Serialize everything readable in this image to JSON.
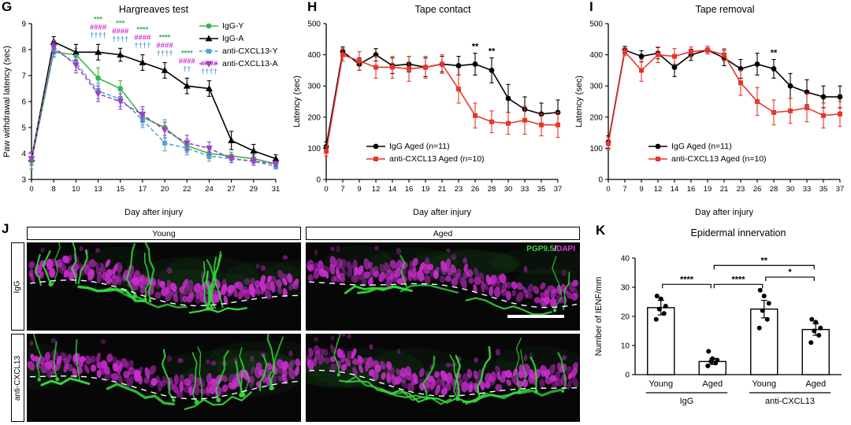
{
  "colors": {
    "green": "#3cb44a",
    "black": "#000000",
    "blue": "#53a2d8",
    "purple": "#a23fc6",
    "red": "#e8362b",
    "magenta_sig": "#cc2fd0",
    "micro_green": "#35d83a",
    "micro_magenta": "#d02cd4"
  },
  "panels": {
    "g": "G",
    "h": "H",
    "i": "I",
    "j": "J",
    "k": "K"
  },
  "chart_data": [
    {
      "id": "hargreaves",
      "type": "line",
      "title": "Hargreaves test",
      "xlabel": "Day after injury",
      "ylabel": "Paw withdrawal latency (sec)",
      "categories": [
        0,
        8,
        10,
        13,
        15,
        17,
        20,
        22,
        24,
        27,
        29,
        31
      ],
      "ylim": [
        3,
        9
      ],
      "yticks": [
        3,
        4,
        5,
        6,
        7,
        8,
        9
      ],
      "series": [
        {
          "name": "IgG-Y",
          "color": "green",
          "marker": "circle",
          "dash": false,
          "values": [
            3.7,
            7.9,
            7.8,
            6.9,
            6.5,
            5.4,
            5.0,
            4.3,
            4.0,
            3.9,
            3.8,
            3.6
          ],
          "err": [
            0.3,
            0.2,
            0.25,
            0.4,
            0.3,
            0.3,
            0.3,
            0.25,
            0.2,
            0.15,
            0.15,
            0.1
          ]
        },
        {
          "name": "IgG-A",
          "color": "black",
          "marker": "triangle",
          "dash": false,
          "values": [
            3.8,
            8.3,
            7.9,
            7.9,
            7.8,
            7.5,
            7.2,
            6.6,
            6.5,
            4.5,
            4.1,
            3.8
          ],
          "err": [
            0.25,
            0.2,
            0.3,
            0.3,
            0.25,
            0.3,
            0.3,
            0.3,
            0.3,
            0.35,
            0.25,
            0.15
          ]
        },
        {
          "name": "anti-CXCL13-Y",
          "color": "blue",
          "marker": "square",
          "dash": true,
          "values": [
            3.8,
            8.0,
            7.5,
            6.4,
            6.1,
            5.3,
            4.4,
            4.2,
            3.9,
            3.8,
            3.7,
            3.5
          ],
          "err": [
            0.25,
            0.25,
            0.3,
            0.3,
            0.3,
            0.3,
            0.3,
            0.25,
            0.2,
            0.15,
            0.15,
            0.1
          ]
        },
        {
          "name": "anti-CXCL13-A",
          "color": "purple",
          "marker": "triangle-down",
          "dash": true,
          "values": [
            3.8,
            8.1,
            7.4,
            6.3,
            6.0,
            5.5,
            4.9,
            4.4,
            4.2,
            3.8,
            3.7,
            3.6
          ],
          "err": [
            0.25,
            0.25,
            0.3,
            0.3,
            0.3,
            0.3,
            0.3,
            0.3,
            0.25,
            0.15,
            0.15,
            0.1
          ]
        }
      ],
      "sig_stacks": [
        {
          "day": 13,
          "markers": [
            {
              "text": "***",
              "color": "green"
            },
            {
              "text": "####",
              "color": "magenta_sig"
            },
            {
              "text": "††††",
              "color": "blue"
            }
          ]
        },
        {
          "day": 15,
          "markers": [
            {
              "text": "***",
              "color": "green"
            },
            {
              "text": "####",
              "color": "magenta_sig"
            },
            {
              "text": "††††",
              "color": "blue"
            }
          ]
        },
        {
          "day": 17,
          "markers": [
            {
              "text": "****",
              "color": "green"
            },
            {
              "text": "####",
              "color": "magenta_sig"
            },
            {
              "text": "††††",
              "color": "blue"
            }
          ]
        },
        {
          "day": 20,
          "markers": [
            {
              "text": "****",
              "color": "green"
            },
            {
              "text": "####",
              "color": "magenta_sig"
            },
            {
              "text": "††††",
              "color": "blue"
            }
          ]
        },
        {
          "day": 22,
          "markers": [
            {
              "text": "****",
              "color": "green"
            },
            {
              "text": "####",
              "color": "magenta_sig"
            },
            {
              "text": "††",
              "color": "blue"
            }
          ]
        },
        {
          "day": 24,
          "markers": [
            {
              "text": "####",
              "color": "magenta_sig"
            },
            {
              "text": "††††",
              "color": "blue"
            }
          ]
        }
      ]
    },
    {
      "id": "tape_contact",
      "type": "line",
      "title": "Tape contact",
      "xlabel": "Day after injury",
      "ylabel": "Latency (sec)",
      "categories": [
        0,
        7,
        9,
        12,
        14,
        16,
        19,
        21,
        23,
        26,
        28,
        30,
        33,
        35,
        37
      ],
      "ylim": [
        0,
        500
      ],
      "yticks": [
        0,
        100,
        200,
        300,
        400,
        500
      ],
      "series": [
        {
          "name": "IgG Aged (n=11)",
          "color": "black",
          "marker": "circle",
          "dash": false,
          "values": [
            105,
            410,
            370,
            400,
            365,
            370,
            360,
            370,
            365,
            370,
            350,
            260,
            225,
            210,
            215
          ],
          "err": [
            15,
            15,
            20,
            20,
            25,
            25,
            30,
            25,
            30,
            35,
            40,
            45,
            40,
            35,
            40
          ]
        },
        {
          "name": "anti-CXCL13 Aged (n=10)",
          "color": "red",
          "marker": "square",
          "dash": false,
          "values": [
            90,
            400,
            380,
            360,
            360,
            355,
            360,
            370,
            290,
            205,
            185,
            180,
            190,
            175,
            175
          ],
          "err": [
            15,
            20,
            30,
            35,
            35,
            40,
            35,
            30,
            45,
            40,
            35,
            35,
            45,
            35,
            40
          ]
        }
      ],
      "sig": [
        {
          "day": 26,
          "text": "**"
        },
        {
          "day": 28,
          "text": "**"
        }
      ]
    },
    {
      "id": "tape_removal",
      "type": "line",
      "title": "Tape removal",
      "xlabel": "Day after injury",
      "ylabel": "Latency (sec)",
      "categories": [
        0,
        7,
        9,
        12,
        14,
        16,
        19,
        21,
        23,
        26,
        28,
        30,
        33,
        35,
        37
      ],
      "ylim": [
        0,
        500
      ],
      "yticks": [
        0,
        100,
        200,
        300,
        400,
        500
      ],
      "series": [
        {
          "name": "IgG Aged (n=11)",
          "color": "black",
          "marker": "circle",
          "dash": false,
          "values": [
            120,
            415,
            395,
            405,
            360,
            400,
            415,
            390,
            355,
            370,
            355,
            300,
            280,
            265,
            265
          ],
          "err": [
            20,
            12,
            18,
            18,
            30,
            18,
            12,
            25,
            30,
            35,
            30,
            40,
            40,
            35,
            35
          ]
        },
        {
          "name": "anti-CXCL13 Aged (n=10)",
          "color": "red",
          "marker": "square",
          "dash": false,
          "values": [
            115,
            410,
            350,
            400,
            395,
            410,
            415,
            400,
            310,
            250,
            215,
            220,
            230,
            205,
            210
          ],
          "err": [
            20,
            12,
            35,
            25,
            25,
            15,
            12,
            20,
            40,
            45,
            40,
            40,
            45,
            40,
            40
          ]
        }
      ],
      "sig": [
        {
          "day": 28,
          "text": "**"
        }
      ]
    },
    {
      "id": "epidermal_innervation",
      "type": "bar",
      "title": "Epidermal innervation",
      "xlabel": "",
      "ylabel": "Number of IENF/mm",
      "categories": [
        "Young",
        "Aged",
        "Young",
        "Aged"
      ],
      "groups": [
        {
          "label": "IgG",
          "span": [
            0,
            1
          ]
        },
        {
          "label": "anti-CXCL13",
          "span": [
            2,
            3
          ]
        }
      ],
      "ylim": [
        0,
        40
      ],
      "yticks": [
        0,
        10,
        20,
        30,
        40
      ],
      "values": [
        23,
        4.5,
        22.5,
        15.5
      ],
      "err": [
        2.5,
        1,
        3,
        2
      ],
      "points": [
        [
          19,
          21,
          22.5,
          23.5,
          26,
          27
        ],
        [
          3,
          4,
          4.5,
          5,
          5.5,
          8
        ],
        [
          16,
          19,
          22,
          24.5,
          27,
          29
        ],
        [
          11,
          13.5,
          15,
          16,
          18,
          19
        ]
      ],
      "sig": [
        {
          "from": 0,
          "to": 1,
          "text": "****",
          "y": 31
        },
        {
          "from": 1,
          "to": 2,
          "text": "****",
          "y": 31
        },
        {
          "from": 2,
          "to": 3,
          "text": "*",
          "y": 33.5
        },
        {
          "from": 1,
          "to": 3,
          "text": "**",
          "y": 37.5
        }
      ]
    }
  ],
  "microscopy": {
    "col_headers": [
      "Young",
      "Aged"
    ],
    "row_headers": [
      "IgG",
      "anti-CXCL13"
    ],
    "stain": {
      "green": "PGP9.5",
      "sep": "/",
      "magenta": "DAPI"
    },
    "panels": [
      {
        "row": "IgG",
        "col": "Young",
        "fibers": 14,
        "strands": 3,
        "seed": 11,
        "scalebar": false
      },
      {
        "row": "IgG",
        "col": "Aged",
        "fibers": 3,
        "strands": 4,
        "seed": 22,
        "scalebar": true
      },
      {
        "row": "anti-CXCL13",
        "col": "Young",
        "fibers": 13,
        "strands": 3,
        "seed": 33,
        "scalebar": false
      },
      {
        "row": "anti-CXCL13",
        "col": "Aged",
        "fibers": 9,
        "strands": 5,
        "seed": 44,
        "scalebar": false
      }
    ]
  }
}
